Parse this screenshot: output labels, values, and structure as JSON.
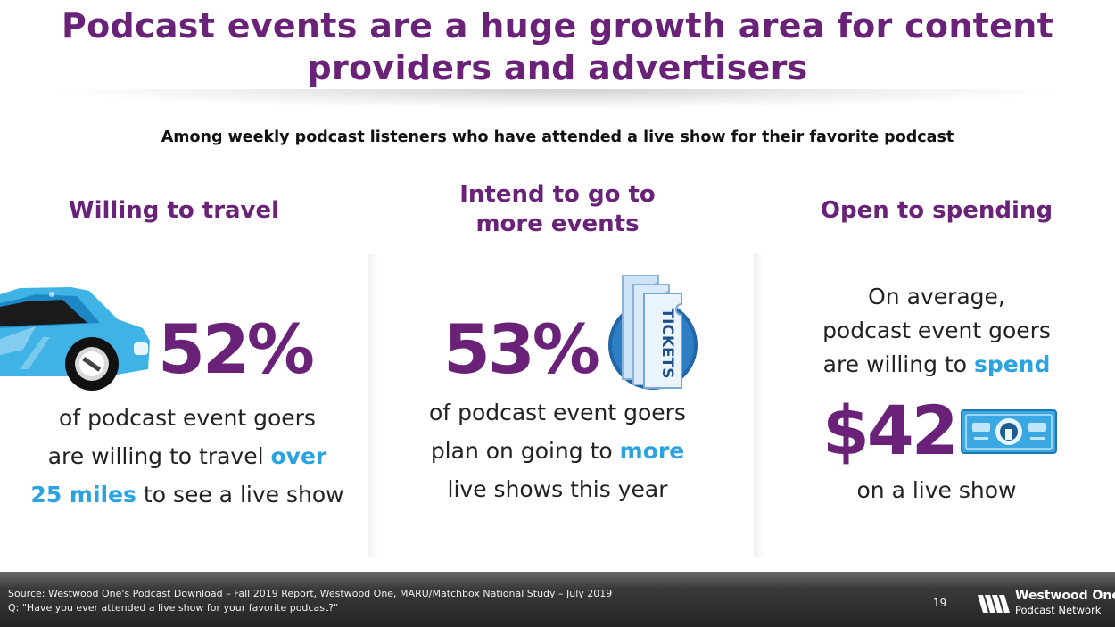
{
  "title": {
    "line1": "Podcast events are a huge growth area for content",
    "line2": "providers and advertisers"
  },
  "subtitle": "Among weekly podcast listeners who have attended a live show for their favorite podcast",
  "columns": {
    "travel": {
      "heading": "Willing to travel",
      "stat": "52%",
      "line1": "of podcast event goers",
      "line2_pre": "are willing to travel ",
      "line2_hl": "over",
      "line3_hl": "25 miles",
      "line3_post": " to see a live show",
      "icon": "car-icon"
    },
    "events": {
      "heading_line1": "Intend to go to",
      "heading_line2": "more events",
      "stat": "53%",
      "line1": "of podcast event goers",
      "line2_pre": "plan on going to ",
      "line2_hl": "more",
      "line3": "live shows this year",
      "icon": "tickets-icon",
      "icon_label": "TICKETS"
    },
    "spending": {
      "heading": "Open to spending",
      "line1": "On average,",
      "line2": "podcast event goers",
      "line3_pre": "are willing to ",
      "line3_hl": "spend",
      "stat": "$42",
      "line4": "on a live show",
      "icon": "dollar-bill-icon"
    }
  },
  "footer": {
    "source_line1": "Source: Westwood One's Podcast Download – Fall 2019 Report, Westwood One, MARU/Matchbox National Study – July 2019",
    "source_line2": "Q: \"Have you ever attended a live show for your favorite podcast?\"",
    "page_number": "19",
    "logo_name": "Westwood One",
    "logo_sub": "Podcast Network"
  },
  "colors": {
    "purple": "#6a2278",
    "highlight_blue": "#2aa3e0",
    "car_blue": "#3fb3e6"
  }
}
